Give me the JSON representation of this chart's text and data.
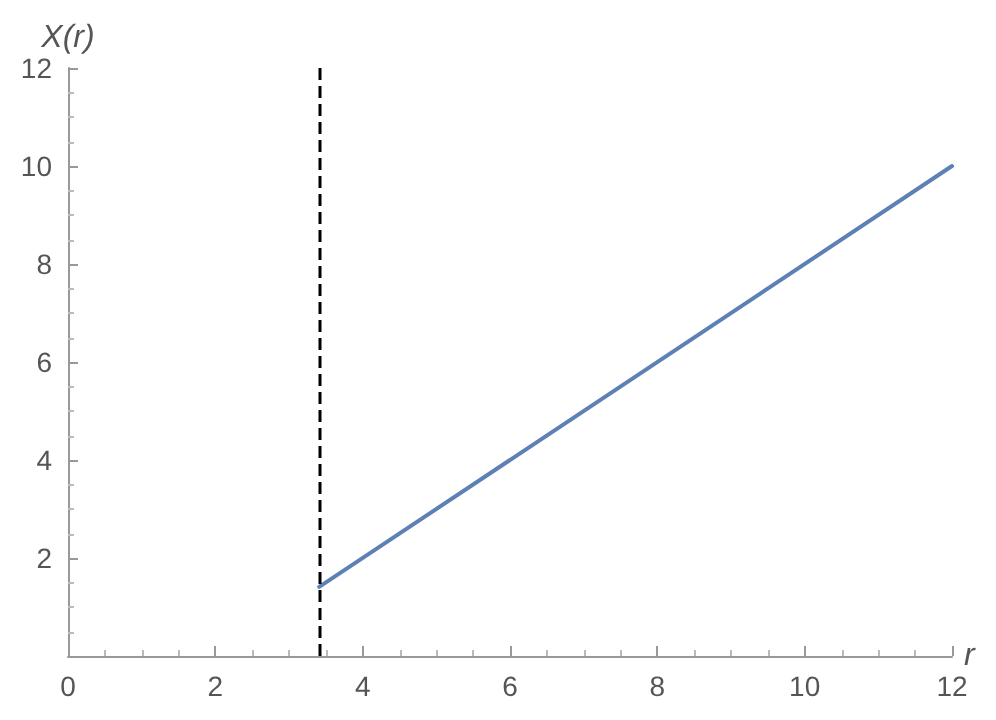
{
  "chart_data": {
    "type": "line",
    "xlabel": "r",
    "ylabel": "X(r)",
    "series": [
      {
        "color": "#5e81b5",
        "x": [
          3.41,
          12
        ],
        "values": [
          1.41,
          10
        ]
      }
    ],
    "xlim": [
      0,
      12
    ],
    "xticks": [
      0,
      2,
      4,
      6,
      8,
      10,
      12
    ],
    "ylim": [
      0,
      12
    ],
    "yticks": [
      2,
      4,
      6,
      8,
      10,
      12
    ],
    "ref_lines": [
      {
        "axis": "x",
        "value": 3.41,
        "color": "#000000",
        "line_style": "dashed"
      }
    ],
    "marker": "none",
    "line_style": "solid"
  }
}
